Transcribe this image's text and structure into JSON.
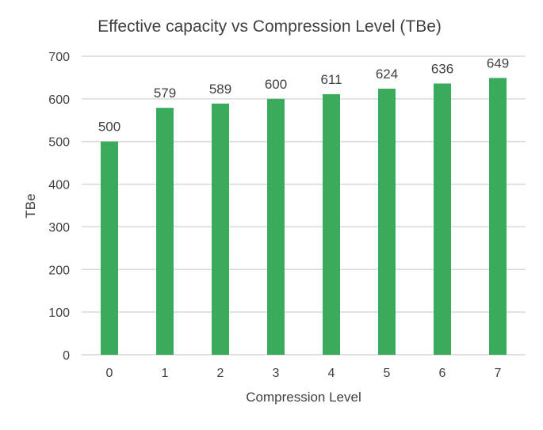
{
  "chart_data": {
    "type": "bar",
    "title": "Effective capacity vs Compression Level (TBe)",
    "xlabel": "Compression Level",
    "ylabel": "TBe",
    "categories": [
      "0",
      "1",
      "2",
      "3",
      "4",
      "5",
      "6",
      "7"
    ],
    "values": [
      500,
      579,
      589,
      600,
      611,
      624,
      636,
      649
    ],
    "ylim": [
      0,
      700
    ],
    "yticks": [
      0,
      100,
      200,
      300,
      400,
      500,
      600,
      700
    ],
    "grid": true,
    "bar_color": "#3aaa5c",
    "gridline_color": "#d9d9d9"
  }
}
